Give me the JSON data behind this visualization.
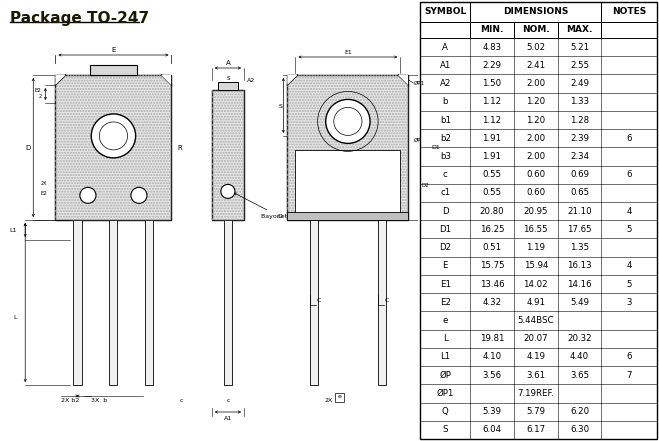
{
  "title": "Package TO-247",
  "table_data": [
    [
      "A",
      "4.83",
      "5.02",
      "5.21",
      ""
    ],
    [
      "A1",
      "2.29",
      "2.41",
      "2.55",
      ""
    ],
    [
      "A2",
      "1.50",
      "2.00",
      "2.49",
      ""
    ],
    [
      "b",
      "1.12",
      "1.20",
      "1.33",
      ""
    ],
    [
      "b1",
      "1.12",
      "1.20",
      "1.28",
      ""
    ],
    [
      "b2",
      "1.91",
      "2.00",
      "2.39",
      "6"
    ],
    [
      "b3",
      "1.91",
      "2.00",
      "2.34",
      ""
    ],
    [
      "c",
      "0.55",
      "0.60",
      "0.69",
      "6"
    ],
    [
      "c1",
      "0.55",
      "0.60",
      "0.65",
      ""
    ],
    [
      "D",
      "20.80",
      "20.95",
      "21.10",
      "4"
    ],
    [
      "D1",
      "16.25",
      "16.55",
      "17.65",
      "5"
    ],
    [
      "D2",
      "0.51",
      "1.19",
      "1.35",
      ""
    ],
    [
      "E",
      "15.75",
      "15.94",
      "16.13",
      "4"
    ],
    [
      "E1",
      "13.46",
      "14.02",
      "14.16",
      "5"
    ],
    [
      "E2",
      "4.32",
      "4.91",
      "5.49",
      "3"
    ],
    [
      "e",
      "",
      "5.44BSC",
      "",
      ""
    ],
    [
      "L",
      "19.81",
      "20.07",
      "20.32",
      ""
    ],
    [
      "L1",
      "4.10",
      "4.19",
      "4.40",
      "6"
    ],
    [
      "ØP",
      "3.56",
      "3.61",
      "3.65",
      "7"
    ],
    [
      "ØP1",
      "",
      "7.19REF.",
      "",
      ""
    ],
    [
      "Q",
      "5.39",
      "5.79",
      "6.20",
      ""
    ],
    [
      "S",
      "6.04",
      "6.17",
      "6.30",
      ""
    ]
  ],
  "bg_color": "#ffffff",
  "title_color": "#1a1a00"
}
